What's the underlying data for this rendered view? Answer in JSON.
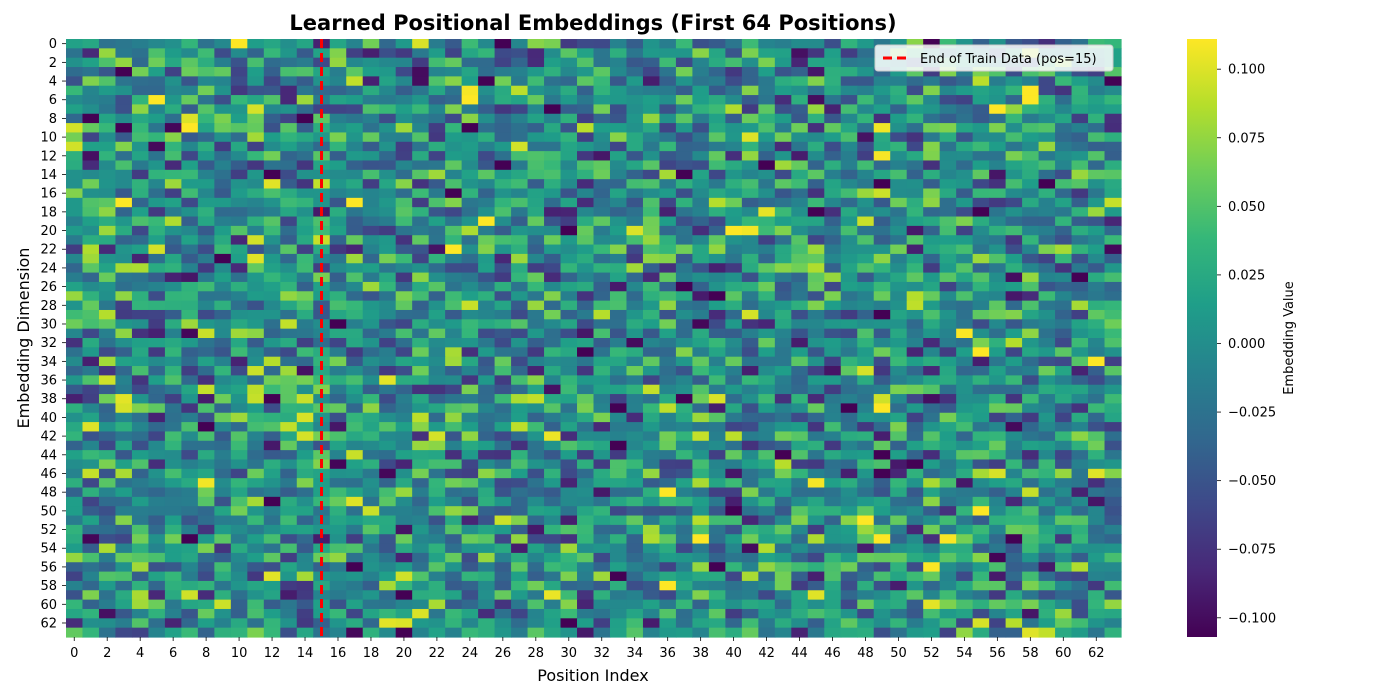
{
  "chart_data": {
    "type": "heatmap",
    "title": "Learned Positional Embeddings (First 64 Positions)",
    "xlabel": "Position Index",
    "ylabel": "Embedding Dimension",
    "x_range": [
      0,
      63
    ],
    "y_range": [
      0,
      63
    ],
    "x_tick_labels": [
      "0",
      "2",
      "4",
      "6",
      "8",
      "10",
      "12",
      "14",
      "16",
      "18",
      "20",
      "22",
      "24",
      "26",
      "28",
      "30",
      "32",
      "34",
      "36",
      "38",
      "40",
      "42",
      "44",
      "46",
      "48",
      "50",
      "52",
      "54",
      "56",
      "58",
      "60",
      "62"
    ],
    "y_tick_labels": [
      "0",
      "2",
      "4",
      "6",
      "8",
      "10",
      "12",
      "14",
      "16",
      "18",
      "20",
      "22",
      "24",
      "26",
      "28",
      "30",
      "32",
      "34",
      "36",
      "38",
      "40",
      "42",
      "44",
      "46",
      "48",
      "50",
      "52",
      "54",
      "56",
      "58",
      "60",
      "62"
    ],
    "colormap": "viridis",
    "colorbar": {
      "label": "Embedding Value",
      "range": [
        -0.107,
        0.111
      ],
      "ticks": [
        "0.100",
        "0.075",
        "0.050",
        "0.025",
        "0.000",
        "−0.025",
        "−0.050",
        "−0.075",
        "−0.100"
      ],
      "tick_values": [
        0.1,
        0.075,
        0.05,
        0.025,
        0.0,
        -0.025,
        -0.05,
        -0.075,
        -0.1
      ]
    },
    "annotation_line": {
      "x": 15,
      "style": "dashed",
      "color": "#ff0000"
    },
    "legend": {
      "placement": "top-right",
      "entries": [
        "End of Train Data (pos=15)"
      ]
    },
    "values_note": ""
  }
}
